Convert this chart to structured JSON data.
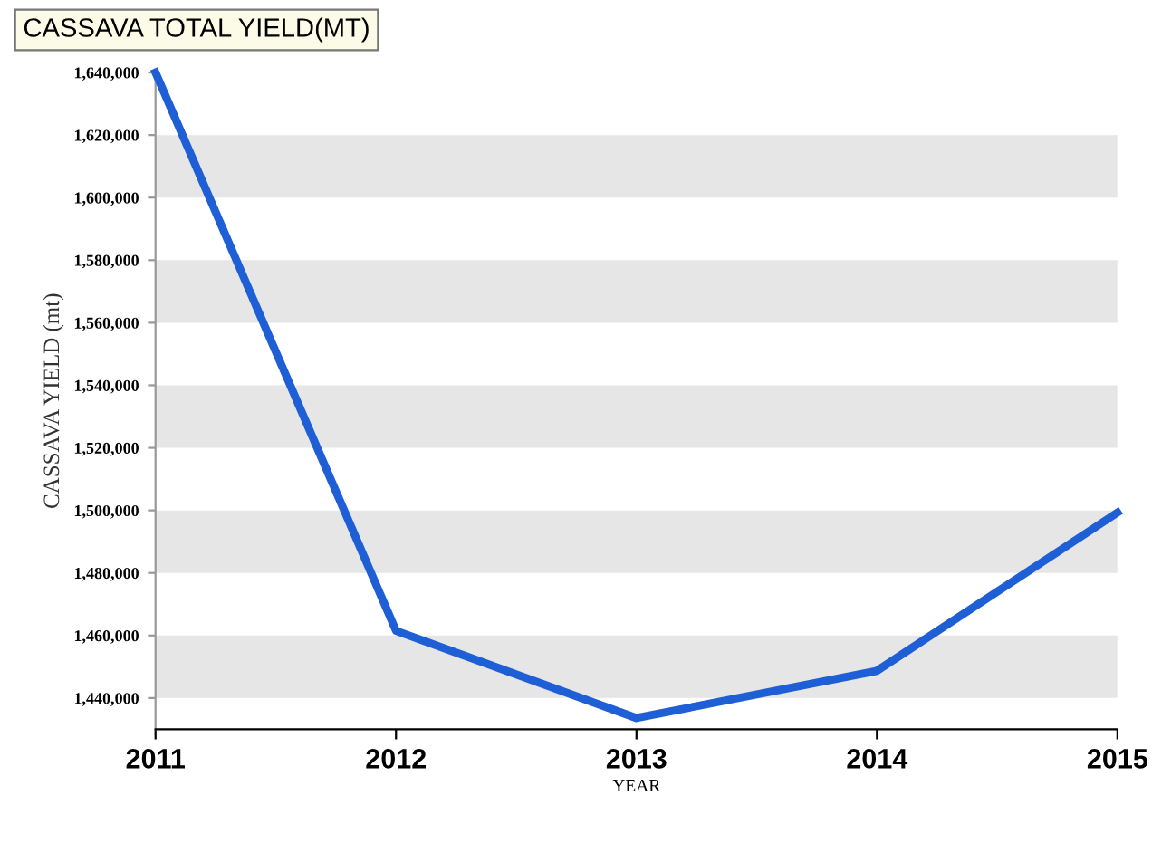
{
  "chart_data": {
    "type": "line",
    "title": "CASSAVA TOTAL YIELD(MT)",
    "xlabel": "YEAR",
    "ylabel": "CASSAVA YIELD (mt)",
    "x": [
      2011,
      2012,
      2013,
      2014,
      2015
    ],
    "series": [
      {
        "color": "#1f5fd6",
        "values": [
          1640000,
          1461500,
          1433600,
          1448700,
          1499300
        ]
      }
    ],
    "xlim": [
      2011,
      2015
    ],
    "xticks": [
      2011,
      2012,
      2013,
      2014,
      2015
    ],
    "ylim": [
      1430000,
      1640000
    ],
    "yticks": [
      {
        "value": 1440000,
        "label": "1,440,000"
      },
      {
        "value": 1460000,
        "label": "1,460,000"
      },
      {
        "value": 1480000,
        "label": "1,480,000"
      },
      {
        "value": 1500000,
        "label": "1,500,000"
      },
      {
        "value": 1520000,
        "label": "1,520,000"
      },
      {
        "value": 1540000,
        "label": "1,540,000"
      },
      {
        "value": 1560000,
        "label": "1,560,000"
      },
      {
        "value": 1580000,
        "label": "1,580,000"
      },
      {
        "value": 1600000,
        "label": "1,600,000"
      },
      {
        "value": 1620000,
        "label": "1,620,000"
      },
      {
        "value": 1640000,
        "label": "1,640,000"
      }
    ],
    "bands": [
      {
        "axis": "y",
        "from": 1440000,
        "to": 1460000,
        "color": "#e6e6e6"
      },
      {
        "axis": "y",
        "from": 1480000,
        "to": 1500000,
        "color": "#e6e6e6"
      },
      {
        "axis": "y",
        "from": 1520000,
        "to": 1540000,
        "color": "#e6e6e6"
      },
      {
        "axis": "y",
        "from": 1560000,
        "to": 1580000,
        "color": "#e6e6e6"
      },
      {
        "axis": "y",
        "from": 1600000,
        "to": 1620000,
        "color": "#e6e6e6"
      }
    ],
    "grid": false,
    "legend": false,
    "marker": "none",
    "line_style": "solid"
  }
}
